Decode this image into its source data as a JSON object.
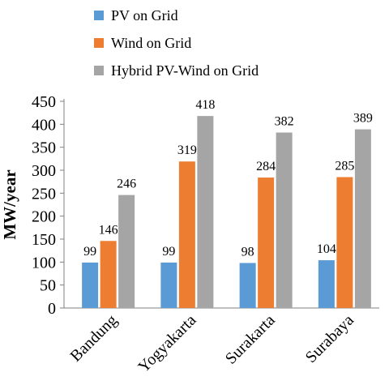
{
  "chart_data": {
    "type": "bar",
    "categories": [
      "Bandung",
      "Yogyakarta",
      "Surakarta",
      "Surabaya"
    ],
    "series": [
      {
        "name": "PV on Grid",
        "values": [
          99,
          99,
          98,
          104
        ],
        "color": "#5B9BD5"
      },
      {
        "name": "Wind on Grid",
        "values": [
          146,
          319,
          284,
          285
        ],
        "color": "#ED7D31"
      },
      {
        "name": "Hybrid PV-Wind on Grid",
        "values": [
          246,
          418,
          382,
          389
        ],
        "color": "#A5A5A5"
      }
    ],
    "ylabel": "MW/year",
    "ylim": [
      0,
      450
    ],
    "yticks": [
      0,
      50,
      100,
      150,
      200,
      250,
      300,
      350,
      400,
      450
    ],
    "legend_position": "top",
    "grid": false
  }
}
